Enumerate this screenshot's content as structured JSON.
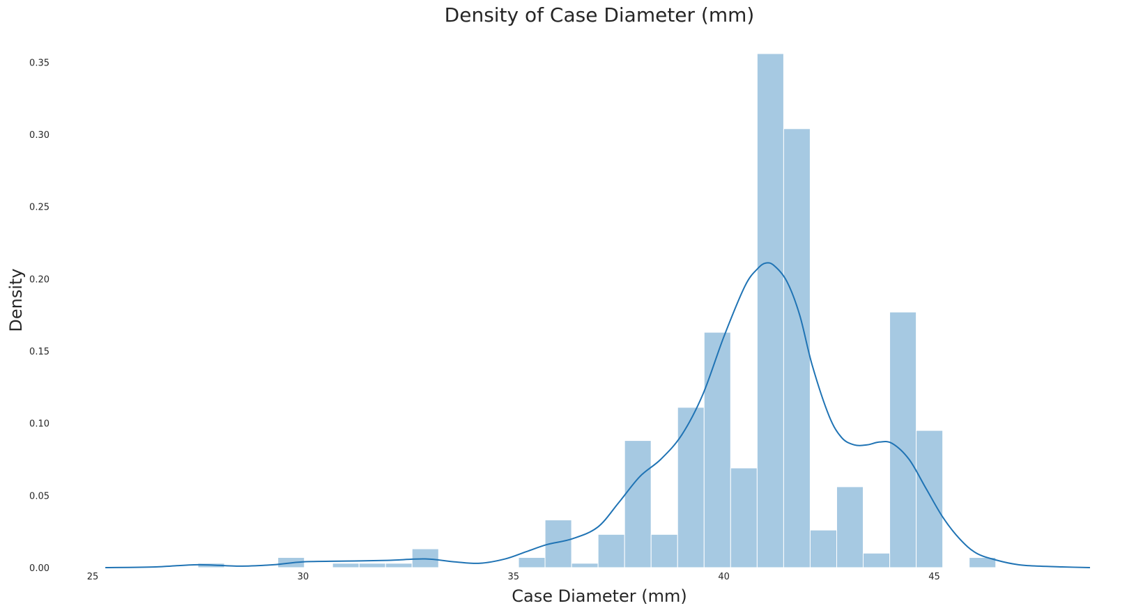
{
  "chart_data": {
    "type": "bar",
    "title": "Density of Case Diameter (mm)",
    "xlabel": "Case Diameter (mm)",
    "ylabel": "Density",
    "xlim": [
      25,
      48.8
    ],
    "ylim": [
      0,
      0.356
    ],
    "grid": false,
    "x_ticks": [
      25,
      30,
      35,
      40,
      45
    ],
    "x_tick_labels": [
      "25",
      "30",
      "35",
      "40",
      "45"
    ],
    "y_ticks": [
      0,
      0.05,
      0.1,
      0.15,
      0.2,
      0.25,
      0.3,
      0.35
    ],
    "y_tick_labels": [
      "0.00",
      "0.05",
      "0.10",
      "0.15",
      "0.20",
      "0.25",
      "0.30",
      "0.35"
    ],
    "colors": {
      "bars": "#a6c9e2",
      "bar_edge": "#ffffff",
      "kde": "#1f73b4"
    },
    "series": [
      {
        "type": "histogram",
        "bin_width": 0.63,
        "bins": [
          {
            "x0": 27.5,
            "value": 0.003
          },
          {
            "x0": 29.4,
            "value": 0.007
          },
          {
            "x0": 30.7,
            "value": 0.003
          },
          {
            "x0": 31.33,
            "value": 0.003
          },
          {
            "x0": 31.96,
            "value": 0.003
          },
          {
            "x0": 32.59,
            "value": 0.013
          },
          {
            "x0": 35.12,
            "value": 0.007
          },
          {
            "x0": 35.75,
            "value": 0.033
          },
          {
            "x0": 36.38,
            "value": 0.003
          },
          {
            "x0": 37.01,
            "value": 0.023
          },
          {
            "x0": 37.64,
            "value": 0.088
          },
          {
            "x0": 38.27,
            "value": 0.023
          },
          {
            "x0": 38.9,
            "value": 0.111
          },
          {
            "x0": 39.53,
            "value": 0.163
          },
          {
            "x0": 40.16,
            "value": 0.069
          },
          {
            "x0": 40.79,
            "value": 0.356
          },
          {
            "x0": 41.42,
            "value": 0.304
          },
          {
            "x0": 42.05,
            "value": 0.026
          },
          {
            "x0": 42.68,
            "value": 0.056
          },
          {
            "x0": 43.31,
            "value": 0.01
          },
          {
            "x0": 43.94,
            "value": 0.177
          },
          {
            "x0": 44.57,
            "value": 0.095
          },
          {
            "x0": 45.83,
            "value": 0.007
          }
        ]
      },
      {
        "type": "kde",
        "x": [
          25.3,
          26.5,
          27.5,
          28.5,
          29.3,
          30.0,
          31.0,
          32.0,
          32.9,
          33.6,
          34.2,
          34.8,
          35.3,
          35.8,
          36.4,
          37.0,
          37.5,
          38.0,
          38.5,
          39.0,
          39.5,
          40.0,
          40.5,
          40.8,
          41.0,
          41.2,
          41.5,
          41.8,
          42.1,
          42.5,
          42.8,
          43.1,
          43.4,
          43.7,
          44.0,
          44.4,
          44.8,
          45.2,
          45.6,
          46.0,
          46.5,
          47.0,
          47.5,
          48.0,
          48.7
        ],
        "y": [
          0.0,
          0.0005,
          0.002,
          0.001,
          0.002,
          0.004,
          0.0045,
          0.005,
          0.006,
          0.004,
          0.003,
          0.006,
          0.011,
          0.016,
          0.02,
          0.028,
          0.045,
          0.063,
          0.075,
          0.092,
          0.12,
          0.16,
          0.195,
          0.207,
          0.211,
          0.209,
          0.198,
          0.175,
          0.14,
          0.105,
          0.09,
          0.085,
          0.085,
          0.087,
          0.086,
          0.075,
          0.055,
          0.035,
          0.02,
          0.01,
          0.005,
          0.002,
          0.001,
          0.0005,
          0.0
        ]
      }
    ]
  }
}
